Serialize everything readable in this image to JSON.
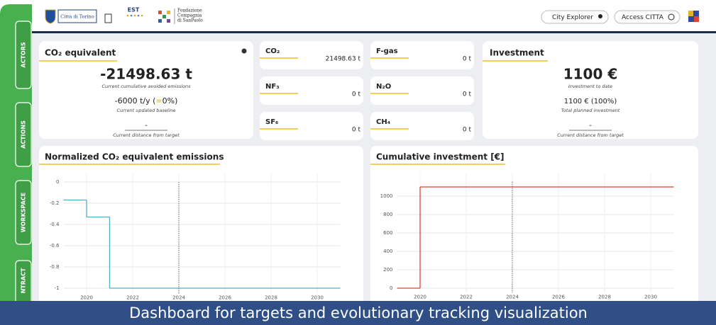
{
  "header": {
    "city": "Città di Torino",
    "est": "EST",
    "foundation": [
      "Fondazione",
      "Compagnia",
      "di SanPaolo"
    ]
  },
  "buttons": [
    "City Explorer",
    "Access CITTA"
  ],
  "sidebar": [
    "ACTORS",
    "ACTIONS",
    "WORKSPACE",
    "NTRACT"
  ],
  "co2_card": {
    "title": "CO₂ equivalent",
    "value": "-21498.63 t",
    "value_caption": "Current cumulative avoided emissions",
    "baseline": [
      "-6000 t/y (",
      "=",
      "0%)"
    ],
    "baseline_caption": "Current updated baseline",
    "distance": "-",
    "distance_caption": "Current distance from target"
  },
  "gas_cards": [
    {
      "name": "CO₂",
      "value": "21498.63 t"
    },
    {
      "name": "NF₃",
      "value": "0 t"
    },
    {
      "name": "SF₆",
      "value": "0 t"
    },
    {
      "name": "F-gas",
      "value": "0 t"
    },
    {
      "name": "N₂O",
      "value": "0 t"
    },
    {
      "name": "CH₄",
      "value": "0 t"
    }
  ],
  "investment_card": {
    "title": "Investment",
    "value": "1100 €",
    "value_caption": "Investment to date",
    "planned": "1100 € (100%)",
    "planned_caption": "Total planned investment",
    "distance": "-",
    "distance_caption": "Current distance from target"
  },
  "chart_data": [
    {
      "type": "line",
      "title": "Normalized CO₂ equivalent emissions",
      "step": "post",
      "x": [
        2019,
        2020,
        2021
      ],
      "values": [
        -0.17,
        -0.33,
        -1
      ],
      "color": "#4fb0c6",
      "reference_x": 2024,
      "xlim": [
        2019,
        2031
      ],
      "xticks": [
        2020,
        2022,
        2024,
        2026,
        2028,
        2030
      ],
      "ylim": [
        -1.05,
        0.08
      ],
      "yticks": [
        0,
        -0.2,
        -0.4,
        -0.6,
        -0.8,
        -1
      ],
      "grid": true
    },
    {
      "type": "line",
      "title": "Cumulative investment [€]",
      "step": "post",
      "x": [
        2019,
        2020
      ],
      "values": [
        0,
        1100
      ],
      "color": "#e0403a",
      "reference_x": 2024,
      "xlim": [
        2019,
        2031
      ],
      "xticks": [
        2020,
        2022,
        2024,
        2026,
        2028,
        2030
      ],
      "ylim": [
        -50,
        1250
      ],
      "yticks": [
        0,
        200,
        400,
        600,
        800,
        1000
      ],
      "grid": true
    }
  ],
  "caption": "Dashboard for targets and evolutionary tracking visualization"
}
